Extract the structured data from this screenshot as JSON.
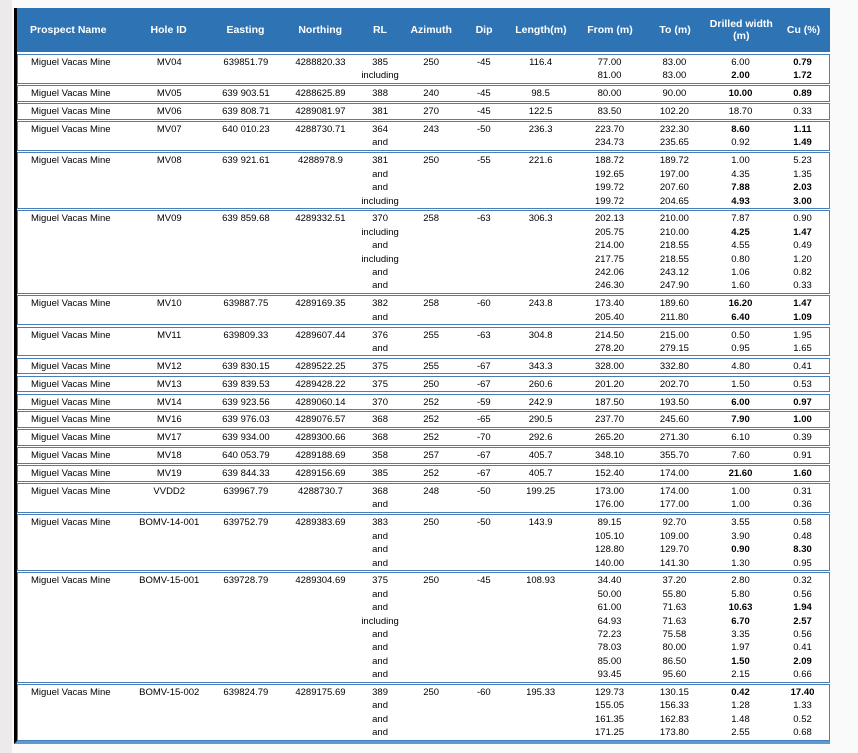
{
  "colors": {
    "header_bg": "#2E74B5",
    "header_text": "#FFFFFF",
    "group_border": "#4A7EBB",
    "bottom_border": "#5B9BD5",
    "left_border": "#000000",
    "page_margin": "#ECEAEB",
    "row_text": "#000000"
  },
  "table": {
    "columns": [
      "Prospect Name",
      "Hole ID",
      "Easting",
      "Northing",
      "RL",
      "Azimuth",
      "Dip",
      "Length(m)",
      "From (m)",
      "To (m)",
      "Drilled width (m)",
      "Cu (%)"
    ],
    "groups": [
      {
        "rows": [
          {
            "prospect": "Miguel Vacas Mine",
            "hole": "MV04",
            "easting": "639851.79",
            "northing": "4288820.33",
            "rl": "385",
            "az": "250",
            "dip": "-45",
            "len": "116.4",
            "from": "77.00",
            "to": "83.00",
            "dw": "6.00",
            "cu": "0.79",
            "cuBold": true
          },
          {
            "label": "including",
            "from": "81.00",
            "to": "83.00",
            "dw": "2.00",
            "cu": "1.72",
            "dwBold": true,
            "cuBold": true
          }
        ]
      },
      {
        "rows": [
          {
            "prospect": "Miguel Vacas Mine",
            "hole": "MV05",
            "easting": "639 903.51",
            "northing": "4288625.89",
            "rl": "388",
            "az": "240",
            "dip": "-45",
            "len": "98.5",
            "from": "80.00",
            "to": "90.00",
            "dw": "10.00",
            "cu": "0.89",
            "dwBold": true,
            "cuBold": true
          }
        ]
      },
      {
        "rows": [
          {
            "prospect": "Miguel Vacas Mine",
            "hole": "MV06",
            "easting": "639 808.71",
            "northing": "4289081.97",
            "rl": "381",
            "az": "270",
            "dip": "-45",
            "len": "122.5",
            "from": "83.50",
            "to": "102.20",
            "dw": "18.70",
            "cu": "0.33"
          }
        ]
      },
      {
        "rows": [
          {
            "prospect": "Miguel Vacas Mine",
            "hole": "MV07",
            "easting": "640 010.23",
            "northing": "4288730.71",
            "rl": "364",
            "az": "243",
            "dip": "-50",
            "len": "236.3",
            "from": "223.70",
            "to": "232.30",
            "dw": "8.60",
            "cu": "1.11",
            "dwBold": true,
            "cuBold": true
          },
          {
            "label": "and",
            "from": "234.73",
            "to": "235.65",
            "dw": "0.92",
            "cu": "1.49",
            "cuBold": true
          }
        ]
      },
      {
        "rows": [
          {
            "prospect": "Miguel Vacas Mine",
            "hole": "MV08",
            "easting": "639 921.61",
            "northing": "4288978.9",
            "rl": "381",
            "az": "250",
            "dip": "-55",
            "len": "221.6",
            "from": "188.72",
            "to": "189.72",
            "dw": "1.00",
            "cu": "5.23"
          },
          {
            "label": "and",
            "from": "192.65",
            "to": "197.00",
            "dw": "4.35",
            "cu": "1.35"
          },
          {
            "label": "and",
            "from": "199.72",
            "to": "207.60",
            "dw": "7.88",
            "cu": "2.03",
            "dwBold": true,
            "cuBold": true
          },
          {
            "label": "including",
            "from": "199.72",
            "to": "204.65",
            "dw": "4.93",
            "cu": "3.00",
            "dwBold": true,
            "cuBold": true
          }
        ]
      },
      {
        "rows": [
          {
            "prospect": "Miguel Vacas Mine",
            "hole": "MV09",
            "easting": "639 859.68",
            "northing": "4289332.51",
            "rl": "370",
            "az": "258",
            "dip": "-63",
            "len": "306.3",
            "from": "202.13",
            "to": "210.00",
            "dw": "7.87",
            "cu": "0.90"
          },
          {
            "label": "including",
            "from": "205.75",
            "to": "210.00",
            "dw": "4.25",
            "cu": "1.47",
            "dwBold": true,
            "cuBold": true
          },
          {
            "label": "and",
            "from": "214.00",
            "to": "218.55",
            "dw": "4.55",
            "cu": "0.49"
          },
          {
            "label": "including",
            "from": "217.75",
            "to": "218.55",
            "dw": "0.80",
            "cu": "1.20"
          },
          {
            "label": "and",
            "from": "242.06",
            "to": "243.12",
            "dw": "1.06",
            "cu": "0.82"
          },
          {
            "label": "and",
            "from": "246.30",
            "to": "247.90",
            "dw": "1.60",
            "cu": "0.33"
          }
        ]
      },
      {
        "rows": [
          {
            "prospect": "Miguel Vacas Mine",
            "hole": "MV10",
            "easting": "639887.75",
            "northing": "4289169.35",
            "rl": "382",
            "az": "258",
            "dip": "-60",
            "len": "243.8",
            "from": "173.40",
            "to": "189.60",
            "dw": "16.20",
            "cu": "1.47",
            "dwBold": true,
            "cuBold": true
          },
          {
            "label": "and",
            "from": "205.40",
            "to": "211.80",
            "dw": "6.40",
            "cu": "1.09",
            "dwBold": true,
            "cuBold": true
          }
        ]
      },
      {
        "rows": [
          {
            "prospect": "Miguel Vacas Mine",
            "hole": "MV11",
            "easting": "639809.33",
            "northing": "4289607.44",
            "rl": "376",
            "az": "255",
            "dip": "-63",
            "len": "304.8",
            "from": "214.50",
            "to": "215.00",
            "dw": "0.50",
            "cu": "1.95"
          },
          {
            "label": "and",
            "from": "278.20",
            "to": "279.15",
            "dw": "0.95",
            "cu": "1.65"
          }
        ]
      },
      {
        "rows": [
          {
            "prospect": "Miguel Vacas Mine",
            "hole": "MV12",
            "easting": "639 830.15",
            "northing": "4289522.25",
            "rl": "375",
            "az": "255",
            "dip": "-67",
            "len": "343.3",
            "from": "328.00",
            "to": "332.80",
            "dw": "4.80",
            "cu": "0.41"
          }
        ]
      },
      {
        "rows": [
          {
            "prospect": "Miguel Vacas Mine",
            "hole": "MV13",
            "easting": "639 839.53",
            "northing": "4289428.22",
            "rl": "375",
            "az": "250",
            "dip": "-67",
            "len": "260.6",
            "from": "201.20",
            "to": "202.70",
            "dw": "1.50",
            "cu": "0.53"
          }
        ]
      },
      {
        "rows": [
          {
            "prospect": "Miguel Vacas Mine",
            "hole": "MV14",
            "easting": "639 923.56",
            "northing": "4289060.14",
            "rl": "370",
            "az": "252",
            "dip": "-59",
            "len": "242.9",
            "from": "187.50",
            "to": "193.50",
            "dw": "6.00",
            "cu": "0.97",
            "dwBold": true,
            "cuBold": true
          }
        ]
      },
      {
        "rows": [
          {
            "prospect": "Miguel Vacas Mine",
            "hole": "MV16",
            "easting": "639 976.03",
            "northing": "4289076.57",
            "rl": "368",
            "az": "252",
            "dip": "-65",
            "len": "290.5",
            "from": "237.70",
            "to": "245.60",
            "dw": "7.90",
            "cu": "1.00",
            "dwBold": true,
            "cuBold": true
          }
        ]
      },
      {
        "rows": [
          {
            "prospect": "Miguel Vacas Mine",
            "hole": "MV17",
            "easting": "639 934.00",
            "northing": "4289300.66",
            "rl": "368",
            "az": "252",
            "dip": "-70",
            "len": "292.6",
            "from": "265.20",
            "to": "271.30",
            "dw": "6.10",
            "cu": "0.39"
          }
        ]
      },
      {
        "rows": [
          {
            "prospect": "Miguel Vacas Mine",
            "hole": "MV18",
            "easting": "640 053.79",
            "northing": "4289188.69",
            "rl": "358",
            "az": "257",
            "dip": "-67",
            "len": "405.7",
            "from": "348.10",
            "to": "355.70",
            "dw": "7.60",
            "cu": "0.91"
          }
        ]
      },
      {
        "rows": [
          {
            "prospect": "Miguel Vacas Mine",
            "hole": "MV19",
            "easting": "639 844.33",
            "northing": "4289156.69",
            "rl": "385",
            "az": "252",
            "dip": "-67",
            "len": "405.7",
            "from": "152.40",
            "to": "174.00",
            "dw": "21.60",
            "cu": "1.60",
            "dwBold": true,
            "cuBold": true
          }
        ]
      },
      {
        "rows": [
          {
            "prospect": "Miguel Vacas Mine",
            "hole": "VVDD2",
            "easting": "639967.79",
            "northing": "4288730.7",
            "rl": "368",
            "az": "248",
            "dip": "-50",
            "len": "199.25",
            "from": "173.00",
            "to": "174.00",
            "dw": "1.00",
            "cu": "0.31"
          },
          {
            "label": "and",
            "from": "176.00",
            "to": "177.00",
            "dw": "1.00",
            "cu": "0.36"
          }
        ]
      },
      {
        "rows": [
          {
            "prospect": "Miguel Vacas Mine",
            "hole": "BOMV-14-001",
            "easting": "639752.79",
            "northing": "4289383.69",
            "rl": "383",
            "az": "250",
            "dip": "-50",
            "len": "143.9",
            "from": "89.15",
            "to": "92.70",
            "dw": "3.55",
            "cu": "0.58"
          },
          {
            "label": "and",
            "from": "105.10",
            "to": "109.00",
            "dw": "3.90",
            "cu": "0.48"
          },
          {
            "label": "and",
            "from": "128.80",
            "to": "129.70",
            "dw": "0.90",
            "cu": "8.30",
            "dwBold": true,
            "cuBold": true
          },
          {
            "label": "and",
            "from": "140.00",
            "to": "141.30",
            "dw": "1.30",
            "cu": "0.95"
          }
        ]
      },
      {
        "rows": [
          {
            "prospect": "Miguel Vacas Mine",
            "hole": "BOMV-15-001",
            "easting": "639728.79",
            "northing": "4289304.69",
            "rl": "375",
            "az": "250",
            "dip": "-45",
            "len": "108.93",
            "from": "34.40",
            "to": "37.20",
            "dw": "2.80",
            "cu": "0.32"
          },
          {
            "label": "and",
            "from": "50.00",
            "to": "55.80",
            "dw": "5.80",
            "cu": "0.56"
          },
          {
            "label": "and",
            "from": "61.00",
            "to": "71.63",
            "dw": "10.63",
            "cu": "1.94",
            "dwBold": true,
            "cuBold": true
          },
          {
            "label": "including",
            "from": "64.93",
            "to": "71.63",
            "dw": "6.70",
            "cu": "2.57",
            "dwBold": true,
            "cuBold": true
          },
          {
            "label": "and",
            "from": "72.23",
            "to": "75.58",
            "dw": "3.35",
            "cu": "0.56"
          },
          {
            "label": "and",
            "from": "78.03",
            "to": "80.00",
            "dw": "1.97",
            "cu": "0.41"
          },
          {
            "label": "and",
            "from": "85.00",
            "to": "86.50",
            "dw": "1.50",
            "cu": "2.09",
            "dwBold": true,
            "cuBold": true
          },
          {
            "label": "and",
            "from": "93.45",
            "to": "95.60",
            "dw": "2.15",
            "cu": "0.66"
          }
        ]
      },
      {
        "rows": [
          {
            "prospect": "Miguel Vacas Mine",
            "hole": "BOMV-15-002",
            "easting": "639824.79",
            "northing": "4289175.69",
            "rl": "389",
            "az": "250",
            "dip": "-60",
            "len": "195.33",
            "from": "129.73",
            "to": "130.15",
            "dw": "0.42",
            "cu": "17.40",
            "dwBold": true,
            "cuBold": true
          },
          {
            "label": "and",
            "from": "155.05",
            "to": "156.33",
            "dw": "1.28",
            "cu": "1.33"
          },
          {
            "label": "and",
            "from": "161.35",
            "to": "162.83",
            "dw": "1.48",
            "cu": "0.52"
          },
          {
            "label": "and",
            "from": "171.25",
            "to": "173.80",
            "dw": "2.55",
            "cu": "0.68"
          }
        ]
      }
    ]
  }
}
